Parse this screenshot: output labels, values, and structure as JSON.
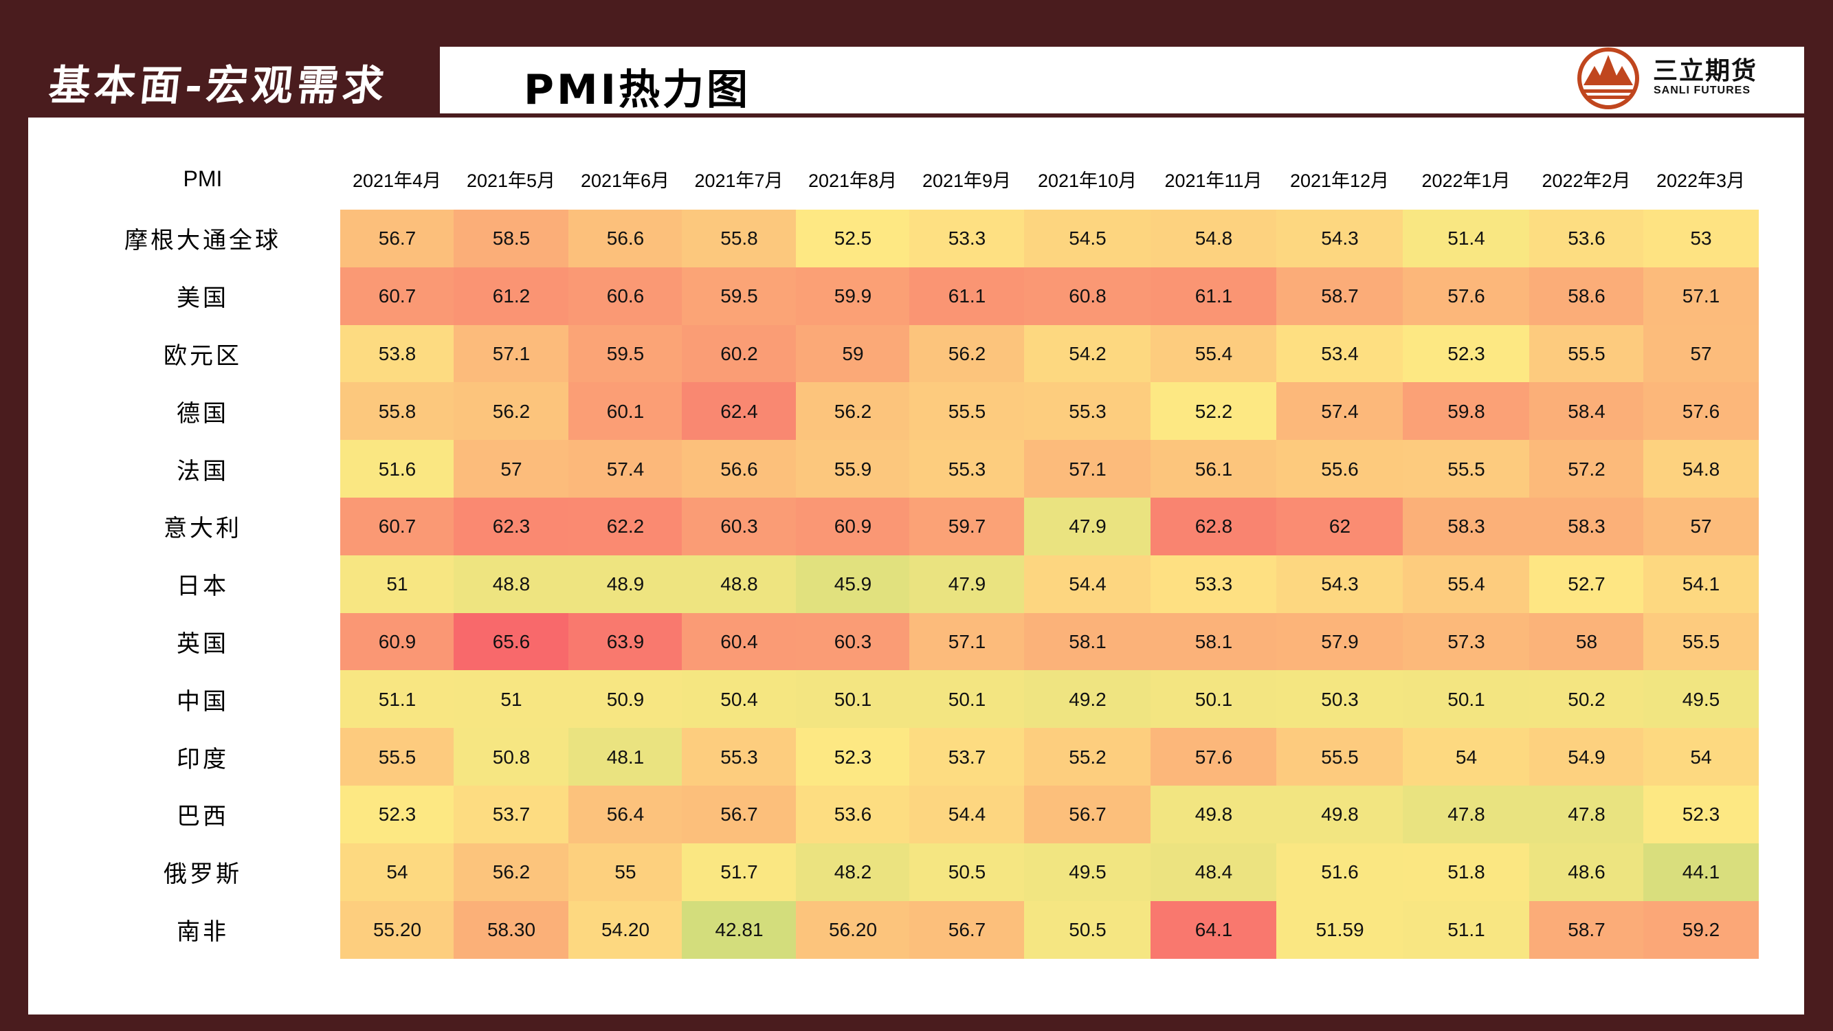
{
  "header": {
    "section_title": "基本面-宏观需求",
    "page_title": "PMI热力图"
  },
  "logo": {
    "name_cn": "三立期货",
    "name_en": "SANLI FUTURES",
    "color": "#c0461e"
  },
  "chart_data": {
    "type": "heatmap",
    "corner_label": "PMI",
    "columns": [
      "2021年4月",
      "2021年5月",
      "2021年6月",
      "2021年7月",
      "2021年8月",
      "2021年9月",
      "2021年10月",
      "2021年11月",
      "2021年12月",
      "2022年1月",
      "2022年2月",
      "2022年3月"
    ],
    "rows": [
      "摩根大通全球",
      "美国",
      "欧元区",
      "德国",
      "法国",
      "意大利",
      "日本",
      "英国",
      "中国",
      "印度",
      "巴西",
      "俄罗斯",
      "南非"
    ],
    "values": [
      [
        "56.7",
        "58.5",
        "56.6",
        "55.8",
        "52.5",
        "53.3",
        "54.5",
        "54.8",
        "54.3",
        "51.4",
        "53.6",
        "53"
      ],
      [
        "60.7",
        "61.2",
        "60.6",
        "59.5",
        "59.9",
        "61.1",
        "60.8",
        "61.1",
        "58.7",
        "57.6",
        "58.6",
        "57.1"
      ],
      [
        "53.8",
        "57.1",
        "59.5",
        "60.2",
        "59",
        "56.2",
        "54.2",
        "55.4",
        "53.4",
        "52.3",
        "55.5",
        "57"
      ],
      [
        "55.8",
        "56.2",
        "60.1",
        "62.4",
        "56.2",
        "55.5",
        "55.3",
        "52.2",
        "57.4",
        "59.8",
        "58.4",
        "57.6"
      ],
      [
        "51.6",
        "57",
        "57.4",
        "56.6",
        "55.9",
        "55.3",
        "57.1",
        "56.1",
        "55.6",
        "55.5",
        "57.2",
        "54.8"
      ],
      [
        "60.7",
        "62.3",
        "62.2",
        "60.3",
        "60.9",
        "59.7",
        "47.9",
        "62.8",
        "62",
        "58.3",
        "58.3",
        "57"
      ],
      [
        "51",
        "48.8",
        "48.9",
        "48.8",
        "45.9",
        "47.9",
        "54.4",
        "53.3",
        "54.3",
        "55.4",
        "52.7",
        "54.1"
      ],
      [
        "60.9",
        "65.6",
        "63.9",
        "60.4",
        "60.3",
        "57.1",
        "58.1",
        "58.1",
        "57.9",
        "57.3",
        "58",
        "55.5"
      ],
      [
        "51.1",
        "51",
        "50.9",
        "50.4",
        "50.1",
        "50.1",
        "49.2",
        "50.1",
        "50.3",
        "50.1",
        "50.2",
        "49.5"
      ],
      [
        "55.5",
        "50.8",
        "48.1",
        "55.3",
        "52.3",
        "53.7",
        "55.2",
        "57.6",
        "55.5",
        "54",
        "54.9",
        "54"
      ],
      [
        "52.3",
        "53.7",
        "56.4",
        "56.7",
        "53.6",
        "54.4",
        "56.7",
        "49.8",
        "49.8",
        "47.8",
        "47.8",
        "52.3"
      ],
      [
        "54",
        "56.2",
        "55",
        "51.7",
        "48.2",
        "50.5",
        "49.5",
        "48.4",
        "51.6",
        "51.8",
        "48.6",
        "44.1"
      ],
      [
        "55.20",
        "58.30",
        "54.20",
        "42.81",
        "56.20",
        "56.7",
        "50.5",
        "64.1",
        "51.59",
        "51.1",
        "58.7",
        "59.2"
      ]
    ],
    "colorscale": {
      "low": "#d3dd7c",
      "mid": "#fee883",
      "high": "#f8696b"
    }
  }
}
